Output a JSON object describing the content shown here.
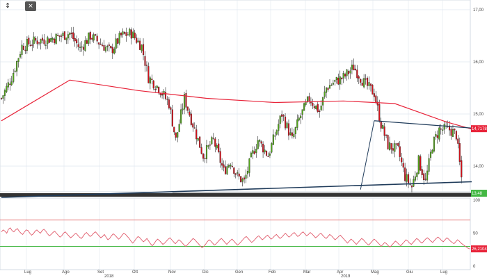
{
  "toolbar": {
    "expand_icon": "↕",
    "close_icon": "×"
  },
  "colors": {
    "up": "#52a61a",
    "down": "#d0121b",
    "ma": "#e8243a",
    "trend": "#1f3b5a",
    "osc": "#e05a6a",
    "upper_band": "#e46a6a",
    "lower_band": "#44b844",
    "price_tag": "#e8243a",
    "support_tag": "#44b844",
    "grid": "#dfe6ef"
  },
  "chart_data": [
    {
      "type": "candlestick",
      "y_ticks": [
        "17,00",
        "16,00",
        "15,00",
        "14,00"
      ],
      "ylim": [
        13.3,
        17.1
      ],
      "grid": true,
      "n_candles": 270,
      "anchors": [
        [
          0,
          15.3
        ],
        [
          6,
          15.7
        ],
        [
          12,
          16.3
        ],
        [
          20,
          16.4
        ],
        [
          30,
          16.45
        ],
        [
          40,
          16.55
        ],
        [
          46,
          16.25
        ],
        [
          52,
          16.5
        ],
        [
          58,
          16.35
        ],
        [
          64,
          16.2
        ],
        [
          70,
          16.5
        ],
        [
          76,
          16.55
        ],
        [
          82,
          16.3
        ],
        [
          86,
          15.7
        ],
        [
          92,
          15.5
        ],
        [
          98,
          15.2
        ],
        [
          102,
          14.5
        ],
        [
          107,
          15.3
        ],
        [
          112,
          14.8
        ],
        [
          118,
          14.2
        ],
        [
          124,
          14.5
        ],
        [
          130,
          13.9
        ],
        [
          134,
          14.1
        ],
        [
          138,
          13.8
        ],
        [
          142,
          13.7
        ],
        [
          146,
          14.15
        ],
        [
          150,
          14.5
        ],
        [
          156,
          14.2
        ],
        [
          164,
          15.0
        ],
        [
          170,
          14.5
        ],
        [
          174,
          14.9
        ],
        [
          180,
          15.3
        ],
        [
          186,
          15.05
        ],
        [
          190,
          15.5
        ],
        [
          194,
          15.6
        ],
        [
          200,
          15.7
        ],
        [
          206,
          15.9
        ],
        [
          212,
          15.6
        ],
        [
          218,
          15.4
        ],
        [
          222,
          14.8
        ],
        [
          226,
          14.4
        ],
        [
          232,
          14.3
        ],
        [
          236,
          13.8
        ],
        [
          240,
          13.6
        ],
        [
          244,
          14.1
        ],
        [
          248,
          13.7
        ],
        [
          252,
          14.4
        ],
        [
          256,
          14.7
        ],
        [
          262,
          14.7
        ],
        [
          266,
          14.6
        ],
        [
          270,
          13.5
        ],
        [
          275,
          13.48
        ]
      ],
      "moving_average": {
        "color": "#e8243a",
        "points": [
          [
            0,
            14.87
          ],
          [
            40,
            15.65
          ],
          [
            80,
            15.45
          ],
          [
            120,
            15.3
          ],
          [
            160,
            15.22
          ],
          [
            200,
            15.25
          ],
          [
            230,
            15.2
          ],
          [
            260,
            14.85
          ],
          [
            275,
            14.71
          ]
        ]
      },
      "support_line": {
        "points": [
          [
            0,
            13.4
          ],
          [
            275,
            13.7
          ]
        ]
      },
      "horizontal_support": {
        "value": 13.48
      },
      "resistance_line": {
        "points": [
          [
            218,
            14.87
          ],
          [
            275,
            14.73
          ]
        ]
      },
      "price_labels": [
        "14,7178",
        "13,48"
      ]
    },
    {
      "type": "line",
      "y_ticks": [
        "100",
        "50",
        "0"
      ],
      "ylim": [
        0,
        100
      ],
      "upper_band": 70,
      "lower_band": 30,
      "values": [
        52,
        55,
        53,
        50,
        56,
        58,
        54,
        52,
        55,
        57,
        53,
        50,
        48,
        52,
        55,
        54,
        50,
        47,
        49,
        53,
        55,
        52,
        50,
        54,
        56,
        53,
        49,
        46,
        48,
        51,
        53,
        50,
        47,
        44,
        46,
        50,
        52,
        49,
        46,
        43,
        45,
        48,
        50,
        47,
        44,
        42,
        45,
        49,
        51,
        48,
        45,
        47,
        50,
        52,
        49,
        46,
        43,
        45,
        48,
        44,
        40,
        42,
        46,
        49,
        47,
        44,
        41,
        43,
        47,
        50,
        48,
        45,
        42,
        38,
        35,
        38,
        42,
        45,
        43,
        40,
        37,
        39,
        42,
        38,
        34,
        31,
        34,
        38,
        41,
        39,
        36,
        33,
        35,
        38,
        41,
        43,
        40,
        37,
        34,
        37,
        40,
        38,
        35,
        32,
        30,
        33,
        36,
        39,
        42,
        40,
        37,
        34,
        31,
        28,
        30,
        33,
        37,
        40,
        38,
        35,
        32,
        34,
        37,
        40,
        42,
        39,
        36,
        33,
        36,
        39,
        41,
        38,
        35,
        32,
        34,
        37,
        40,
        43,
        45,
        42,
        39,
        36,
        38,
        41,
        44,
        46,
        43,
        40,
        42,
        45,
        47,
        44,
        41,
        43,
        46,
        48,
        45,
        42,
        44,
        47,
        50,
        47,
        44,
        46,
        49,
        51,
        48,
        45,
        47,
        50,
        52,
        49,
        46,
        48,
        51,
        49,
        46,
        43,
        45,
        48,
        50,
        47,
        44,
        42,
        45,
        48,
        46,
        43,
        40,
        42,
        45,
        47,
        44,
        41,
        38,
        35,
        38,
        41,
        39,
        36,
        33,
        36,
        39,
        42,
        40,
        37,
        34,
        32,
        35,
        38,
        41,
        39,
        36,
        33,
        30,
        33,
        36,
        34,
        31,
        29,
        32,
        35,
        38,
        36,
        33,
        31,
        34,
        37,
        40,
        38,
        35,
        33,
        36,
        39,
        42,
        40,
        37,
        35,
        38,
        41,
        43,
        41,
        38,
        36,
        39,
        42,
        44,
        42,
        39,
        37,
        40,
        43,
        41,
        38,
        36,
        34,
        37,
        40,
        38,
        35,
        33,
        31,
        29,
        27,
        26.2
      ],
      "value_label": "26,2104"
    }
  ],
  "x_axis": {
    "months": [
      "Lug",
      "Ago",
      "Set",
      "Ott",
      "Nov",
      "Dic",
      "Gen",
      "Feb",
      "Mar",
      "Apr",
      "Mag",
      "Giu",
      "Lug"
    ],
    "years": [
      "2018",
      "2019"
    ]
  }
}
